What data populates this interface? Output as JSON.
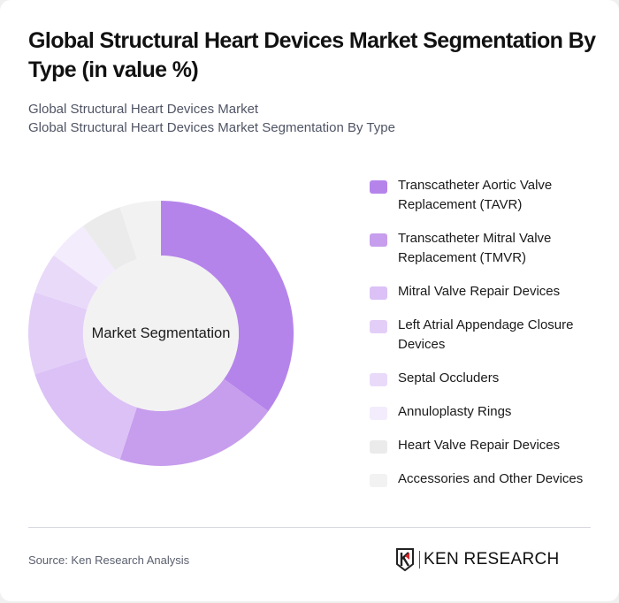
{
  "header": {
    "title": "Global Structural Heart Devices Market Segmentation By Type (in value %)",
    "subtitle_line1": "Global Structural Heart Devices Market",
    "subtitle_line2": "Global Structural Heart Devices Market Segmentation By Type"
  },
  "chart_data": {
    "type": "pie",
    "variant": "donut",
    "title": "Global Structural Heart Devices Market Segmentation By Type (in value %)",
    "center_label": "Market Segmentation",
    "categories": [
      "Transcatheter Aortic Valve Replacement (TAVR)",
      "Transcatheter Mitral Valve Replacement (TMVR)",
      "Mitral Valve Repair Devices",
      "Left Atrial Appendage Closure Devices",
      "Septal Occluders",
      "Annuloplasty Rings",
      "Heart Valve Repair Devices",
      "Accessories and Other Devices"
    ],
    "values": [
      35,
      20,
      15,
      10,
      5,
      5,
      5,
      5
    ],
    "unit": "%",
    "colors": [
      "#b584ea",
      "#c79ded",
      "#dbc1f6",
      "#e3cef8",
      "#e9daf9",
      "#f3ecfc",
      "#ebebeb",
      "#f2f2f2"
    ],
    "legend_position": "right",
    "start_angle_deg": 0,
    "direction": "clockwise"
  },
  "legend": {
    "items": [
      {
        "label": "Transcatheter Aortic Valve Replacement (TAVR)",
        "color": "#b584ea"
      },
      {
        "label": "Transcatheter Mitral Valve Replacement (TMVR)",
        "color": "#c79ded"
      },
      {
        "label": "Mitral Valve Repair Devices",
        "color": "#dbc1f6"
      },
      {
        "label": "Left Atrial Appendage Closure Devices",
        "color": "#e3cef8"
      },
      {
        "label": "Septal Occluders",
        "color": "#e9daf9"
      },
      {
        "label": "Annuloplasty Rings",
        "color": "#f3ecfc"
      },
      {
        "label": "Heart Valve Repair Devices",
        "color": "#ebebeb"
      },
      {
        "label": "Accessories and Other Devices",
        "color": "#f2f2f2"
      }
    ]
  },
  "footer": {
    "source": "Source: Ken Research Analysis",
    "brand": "KEN RESEARCH",
    "brand_accent": "#d9262c"
  }
}
